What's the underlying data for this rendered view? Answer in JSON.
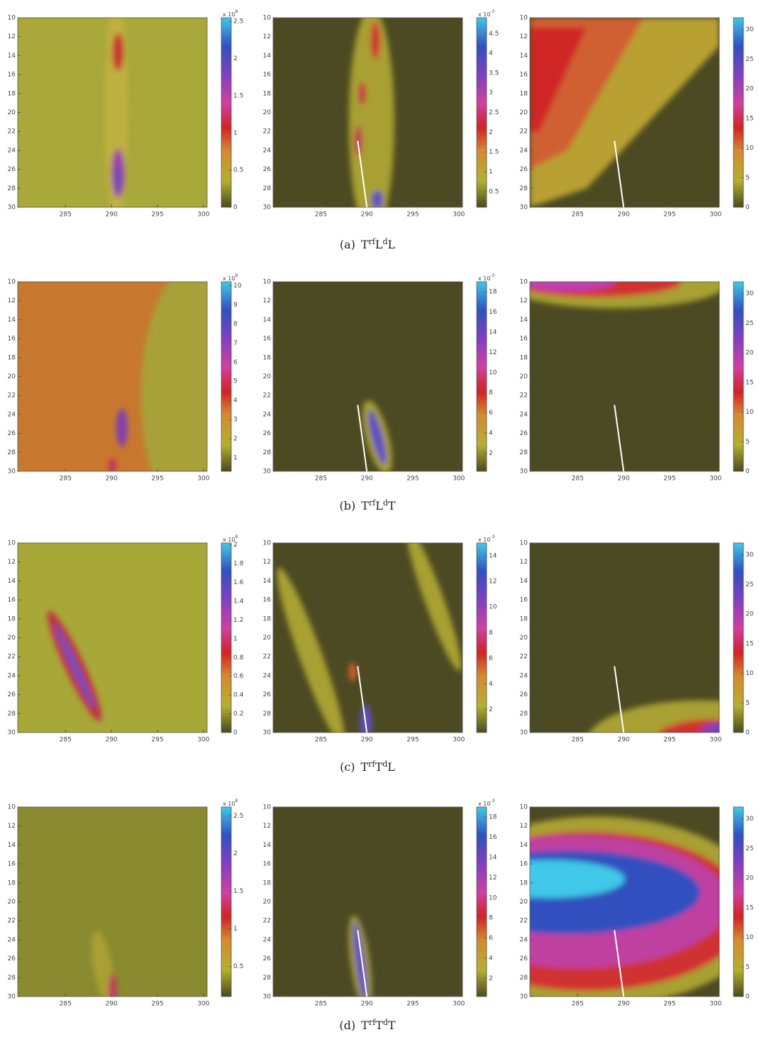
{
  "figure": {
    "axes": {
      "xlim": [
        279.8,
        300.4
      ],
      "ylim": [
        10,
        30
      ],
      "xticks": [
        285,
        290,
        295,
        300
      ],
      "yticks": [
        10,
        12,
        14,
        16,
        18,
        20,
        22,
        24,
        26,
        28,
        30
      ]
    },
    "marker_line": {
      "x": [
        289,
        290
      ],
      "y": [
        23,
        30
      ]
    },
    "rows": [
      {
        "caption_label": "(a)",
        "caption_terms": [
          "T",
          "rf",
          "L",
          "d",
          "L"
        ],
        "plots": [
          {
            "colorbar": {
              "clim": [
                0,
                2.55
              ],
              "ticks": [
                0,
                0.5,
                1,
                1.5,
                2,
                2.5
              ],
              "exponent": {
                "base": "x 10",
                "power": "8"
              }
            }
          },
          {
            "marker": true,
            "colorbar": {
              "clim": [
                0.1,
                4.9
              ],
              "ticks": [
                0.5,
                1,
                1.5,
                2,
                2.5,
                3,
                3.5,
                4,
                4.5
              ],
              "exponent": {
                "base": "x 10",
                "power": "-3"
              }
            }
          },
          {
            "marker": true,
            "colorbar": {
              "clim": [
                0,
                32
              ],
              "ticks": [
                0,
                5,
                10,
                15,
                20,
                25,
                30
              ]
            }
          }
        ]
      },
      {
        "caption_label": "(b)",
        "caption_terms": [
          "T",
          "rf",
          "L",
          "d",
          "T"
        ],
        "plots": [
          {
            "colorbar": {
              "clim": [
                0.3,
                10.2
              ],
              "ticks": [
                1,
                2,
                3,
                4,
                5,
                6,
                7,
                8,
                9,
                10
              ],
              "exponent": {
                "base": "x 10",
                "power": "8"
              }
            }
          },
          {
            "marker": true,
            "colorbar": {
              "clim": [
                0.2,
                19
              ],
              "ticks": [
                2,
                4,
                6,
                8,
                10,
                12,
                14,
                16,
                18
              ],
              "exponent": {
                "base": "x 10",
                "power": "-3"
              }
            }
          },
          {
            "marker": true,
            "colorbar": {
              "clim": [
                0,
                32
              ],
              "ticks": [
                0,
                5,
                10,
                15,
                20,
                25,
                30
              ]
            }
          }
        ]
      },
      {
        "caption_label": "(c)",
        "caption_terms": [
          "T",
          "rf",
          "T",
          "d",
          "L"
        ],
        "plots": [
          {
            "colorbar": {
              "clim": [
                0,
                2.02
              ],
              "ticks": [
                0,
                0.2,
                0.4,
                0.6,
                0.8,
                1,
                1.2,
                1.4,
                1.6,
                1.8,
                2
              ],
              "exponent": {
                "base": "x 10",
                "power": "8"
              }
            }
          },
          {
            "marker": true,
            "colorbar": {
              "clim": [
                0.2,
                15
              ],
              "ticks": [
                2,
                4,
                6,
                8,
                10,
                12,
                14
              ],
              "exponent": {
                "base": "x 10",
                "power": "-3"
              }
            }
          },
          {
            "marker": true,
            "colorbar": {
              "clim": [
                0,
                32
              ],
              "ticks": [
                0,
                5,
                10,
                15,
                20,
                25,
                30
              ]
            }
          }
        ]
      },
      {
        "caption_label": "(d)",
        "caption_terms": [
          "T",
          "rf",
          "T",
          "d",
          "T"
        ],
        "plots": [
          {
            "colorbar": {
              "clim": [
                0.1,
                2.62
              ],
              "ticks": [
                0.5,
                1,
                1.5,
                2,
                2.5
              ],
              "exponent": {
                "base": "x 10",
                "power": "8"
              }
            }
          },
          {
            "marker": true,
            "colorbar": {
              "clim": [
                0.2,
                19
              ],
              "ticks": [
                2,
                4,
                6,
                8,
                10,
                12,
                14,
                16,
                18
              ],
              "exponent": {
                "base": "x 10",
                "power": "-3"
              }
            }
          },
          {
            "marker": true,
            "colorbar": {
              "clim": [
                0,
                32
              ],
              "ticks": [
                0,
                5,
                10,
                15,
                20,
                25,
                30
              ]
            }
          }
        ]
      }
    ]
  }
}
